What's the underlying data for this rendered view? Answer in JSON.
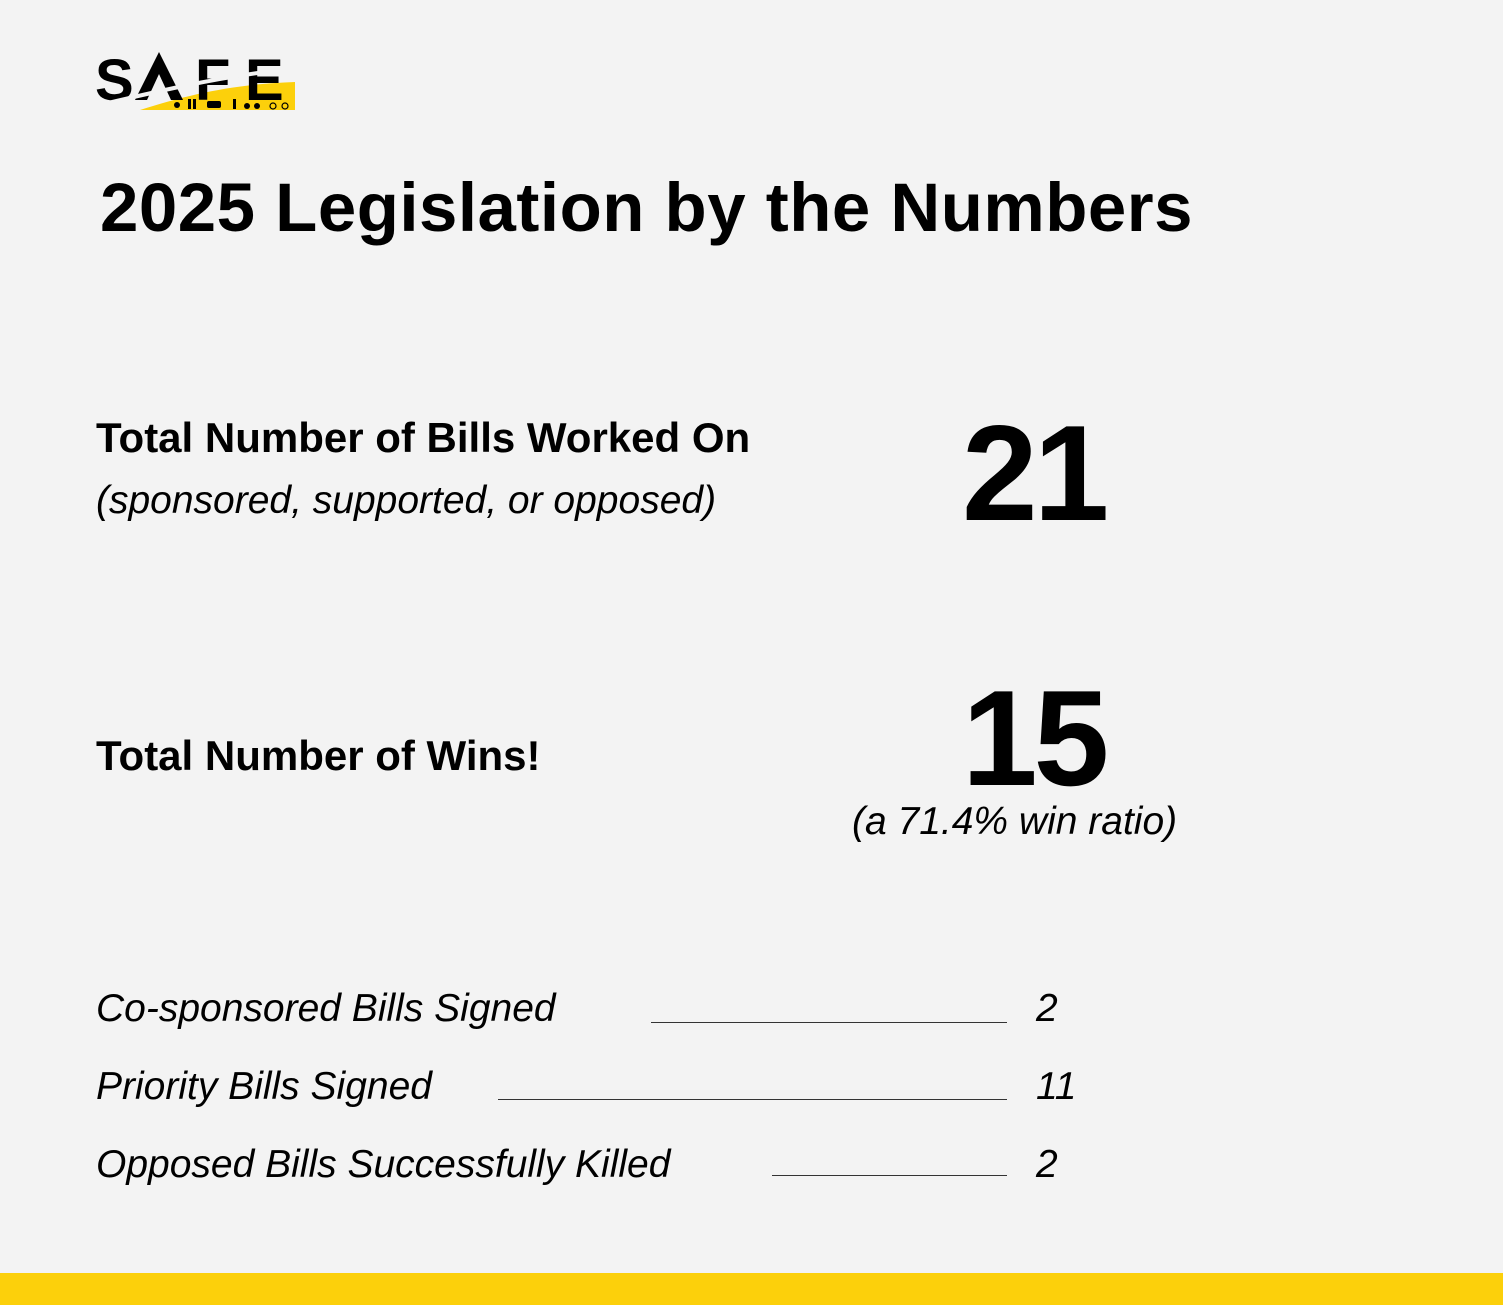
{
  "logo": {
    "text": "SAFE",
    "accent_color": "#fcd00b",
    "icons": [
      "wheelchair-icon",
      "pedestrians-icon",
      "car-icon",
      "walker-icon",
      "motorcycle-icon",
      "bicycle-icon"
    ]
  },
  "header": {
    "title": "2025 Legislation by the Numbers"
  },
  "stats": {
    "bills_worked": {
      "label": "Total Number of Bills Worked On",
      "sublabel": "(sponsored, supported, or opposed)",
      "value": "21"
    },
    "wins": {
      "label": "Total Number of Wins!",
      "value": "15",
      "ratio_note": "(a 71.4% win ratio)"
    }
  },
  "breakdown": [
    {
      "label": "Co-sponsored Bills Signed",
      "value": "2"
    },
    {
      "label": "Priority Bills Signed",
      "value": "11"
    },
    {
      "label": "Opposed Bills Successfully Killed",
      "value": "2"
    }
  ],
  "footer": {
    "bar_color": "#fcd00b"
  }
}
